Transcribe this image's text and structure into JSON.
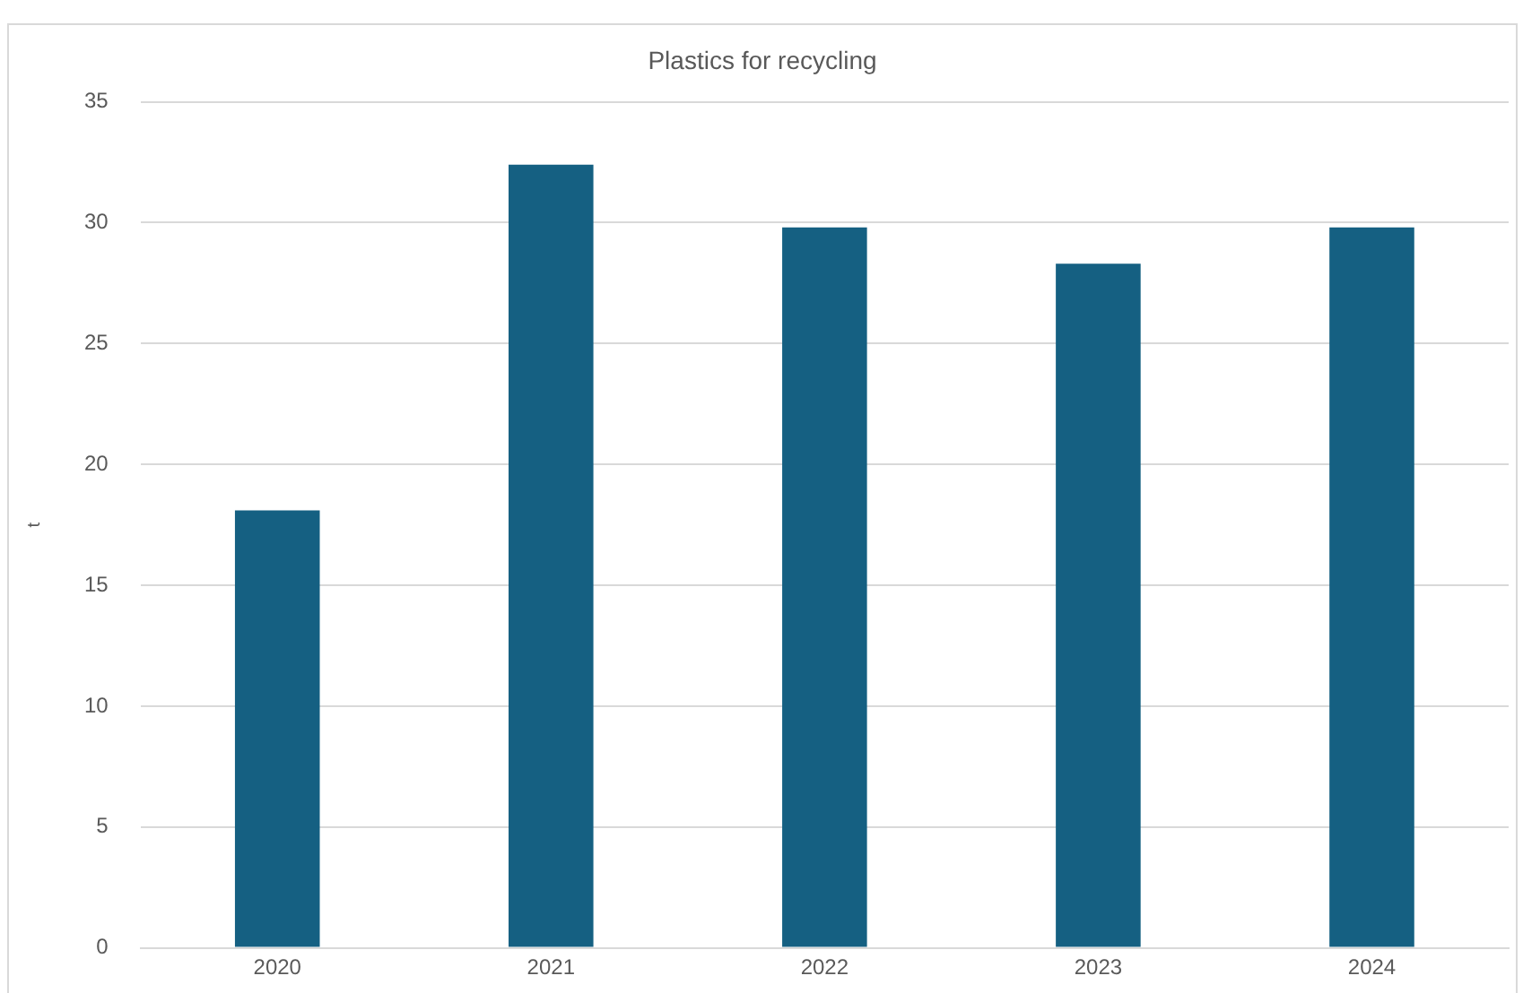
{
  "chart_data": {
    "type": "bar",
    "title": "Plastics for recycling",
    "ylabel": "t",
    "categories": [
      "2020",
      "2021",
      "2022",
      "2023",
      "2024"
    ],
    "values": [
      18.1,
      32.4,
      29.8,
      28.3,
      29.8
    ],
    "color": "#156082",
    "ylim": [
      0,
      35
    ],
    "yticks": [
      0,
      5,
      10,
      15,
      20,
      25,
      30,
      35
    ],
    "grid": "y"
  }
}
